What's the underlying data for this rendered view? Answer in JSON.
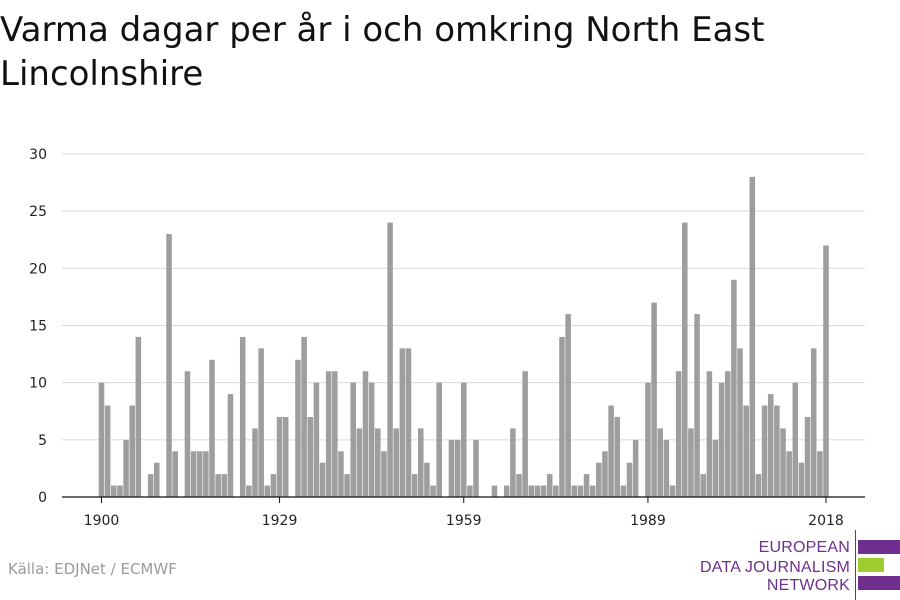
{
  "chart_data": {
    "type": "bar",
    "title": "Varma dagar per år i och omkring North East Lincolnshire",
    "x_start": 1900,
    "x_end": 2018,
    "xticks": [
      1900,
      1929,
      1959,
      1989,
      2018
    ],
    "yticks": [
      0,
      5,
      10,
      15,
      20,
      25,
      30
    ],
    "ylim": [
      0,
      30
    ],
    "grid": true,
    "bar_color": "#9e9e9e",
    "values": [
      10,
      8,
      1,
      1,
      5,
      8,
      14,
      0,
      2,
      3,
      0,
      23,
      4,
      0,
      11,
      4,
      4,
      4,
      12,
      2,
      2,
      9,
      0,
      14,
      1,
      6,
      13,
      1,
      2,
      7,
      7,
      0,
      12,
      14,
      7,
      10,
      3,
      11,
      11,
      4,
      2,
      10,
      6,
      11,
      10,
      6,
      4,
      24,
      6,
      13,
      13,
      2,
      6,
      3,
      1,
      10,
      0,
      5,
      5,
      10,
      1,
      5,
      0,
      0,
      1,
      0,
      1,
      6,
      2,
      11,
      1,
      1,
      1,
      2,
      1,
      14,
      16,
      1,
      1,
      2,
      1,
      3,
      4,
      8,
      7,
      1,
      3,
      5,
      0,
      10,
      17,
      6,
      5,
      1,
      11,
      24,
      6,
      16,
      2,
      11,
      5,
      10,
      11,
      19,
      13,
      8,
      28,
      2,
      8,
      9,
      8,
      6,
      4,
      10,
      3,
      7,
      13,
      4,
      22
    ]
  },
  "source": "Källa: EDJNet / ECMWF",
  "logo": {
    "line1": "EUROPEAN",
    "line2": "DATA JOURNALISM",
    "line3": "NETWORK",
    "purple": "#6f2f8f",
    "green": "#9ccc2e"
  }
}
